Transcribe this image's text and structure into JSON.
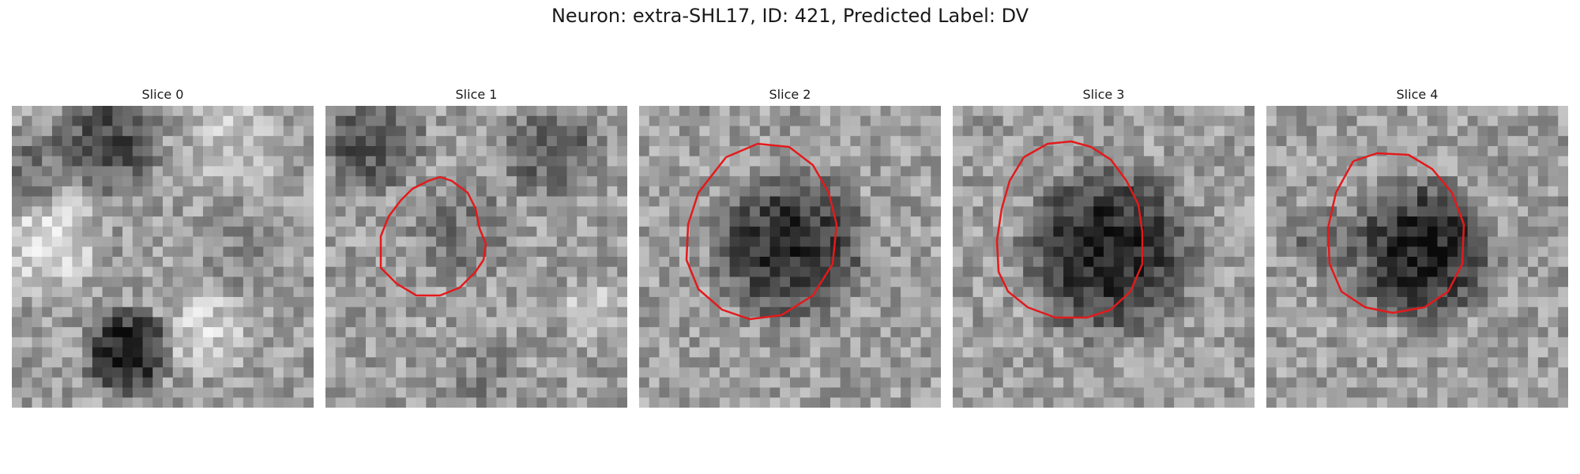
{
  "figure": {
    "title": "Neuron: extra-SHL17, ID: 421, Predicted Label: DV"
  },
  "panels": [
    {
      "title": "Slice 0",
      "has_contour": false
    },
    {
      "title": "Slice 1",
      "has_contour": true
    },
    {
      "title": "Slice 2",
      "has_contour": true
    },
    {
      "title": "Slice 3",
      "has_contour": true
    },
    {
      "title": "Slice 4",
      "has_contour": true
    }
  ],
  "colors": {
    "contour": "#e31a1c",
    "background": "#ffffff"
  }
}
